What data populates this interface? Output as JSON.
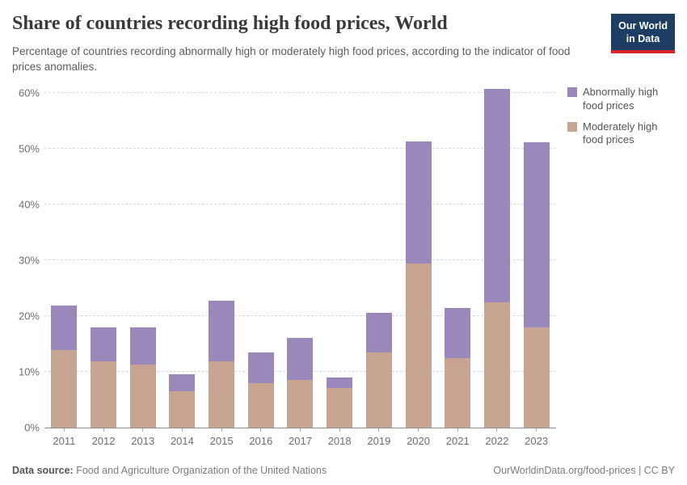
{
  "header": {
    "title": "Share of countries recording high food prices, World",
    "subtitle": "Percentage of countries recording abnormally high or moderately high food prices, according to the indicator of food prices anomalies.",
    "logo": {
      "line1": "Our World",
      "line2": "in Data"
    }
  },
  "chart_data": {
    "type": "bar",
    "stacked": true,
    "title": "Share of countries recording high food prices, World",
    "xlabel": "",
    "ylabel": "",
    "categories": [
      "2011",
      "2012",
      "2013",
      "2014",
      "2015",
      "2016",
      "2017",
      "2018",
      "2019",
      "2020",
      "2021",
      "2022",
      "2023"
    ],
    "series": [
      {
        "name": "Moderately high food prices",
        "color": "#c8a492",
        "values": [
          13.9,
          11.9,
          11.3,
          6.5,
          11.9,
          8.0,
          8.5,
          7.0,
          13.4,
          29.4,
          12.5,
          22.4,
          18.0
        ]
      },
      {
        "name": "Abnormally high food prices",
        "color": "#9a88ba",
        "values": [
          7.9,
          6.0,
          6.6,
          3.0,
          10.9,
          5.4,
          7.5,
          2.0,
          7.1,
          21.9,
          9.0,
          38.4,
          33.2
        ]
      }
    ],
    "totals": [
      21.8,
      17.9,
      17.9,
      9.5,
      22.8,
      13.4,
      16.0,
      9.0,
      20.5,
      51.3,
      21.5,
      60.8,
      51.2
    ],
    "ylim": [
      0,
      61.5
    ],
    "yticks": [
      0,
      10,
      20,
      30,
      40,
      50,
      60
    ],
    "ytick_labels": [
      "0%",
      "10%",
      "20%",
      "30%",
      "40%",
      "50%",
      "60%"
    ],
    "grid": "horizontal-dashed",
    "legend_position": "right"
  },
  "legend": {
    "items": [
      {
        "label": "Abnormally high food prices",
        "color": "#9a88ba"
      },
      {
        "label": "Moderately high food prices",
        "color": "#c8a492"
      }
    ]
  },
  "footer": {
    "source_label": "Data source:",
    "source_text": " Food and Agriculture Organization of the United Nations",
    "right_text": "OurWorldinData.org/food-prices | CC BY"
  }
}
